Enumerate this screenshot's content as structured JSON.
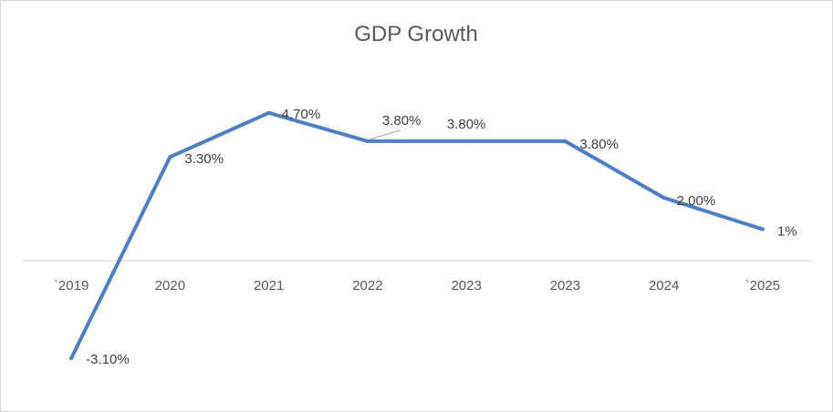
{
  "chart_data": {
    "type": "line",
    "title": "GDP Growth",
    "categories": [
      "`2019",
      "2020",
      "2021",
      "2022",
      "2023",
      "2023",
      "2024",
      "`2025"
    ],
    "series": [
      {
        "name": "GDP Growth",
        "color": "#4F7FBF",
        "values": [
          -3.1,
          3.3,
          4.7,
          3.8,
          3.8,
          3.8,
          2.0,
          1.0
        ],
        "labels": [
          "-3.10%",
          "3.30%",
          "4.70%",
          "3.80%",
          "3.80%",
          "3.80%",
          "2.00%",
          "1%"
        ]
      }
    ],
    "ylim": [
      -3.5,
      5.5
    ],
    "xlabel": "",
    "ylabel": "",
    "grid": false,
    "legend": "none"
  }
}
